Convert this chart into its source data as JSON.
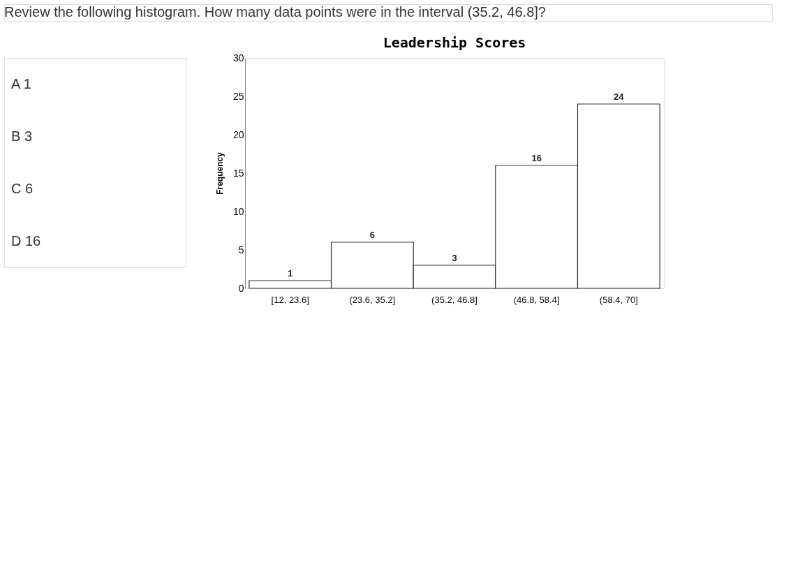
{
  "chart_data": {
    "type": "bar",
    "title": "Leadership Scores",
    "categories": [
      "[12, 23.6]",
      "(23.6, 35.2]",
      "(35.2, 46.8]",
      "(46.8, 58.4]",
      "(58.4, 70]"
    ],
    "values": [
      1,
      6,
      3,
      16,
      24
    ],
    "color": "#ffffff",
    "ylabel": "Frequency",
    "ylim": [
      0,
      30
    ],
    "yticks": [
      0,
      5,
      10,
      15,
      20,
      25,
      30
    ],
    "grid": false,
    "data_labels": true,
    "annotations": [
      "Review the following histogram. How many data points were in the interval (35.2, 46.8]?",
      "A 1",
      "B 3",
      "C 6",
      "D 16"
    ]
  }
}
